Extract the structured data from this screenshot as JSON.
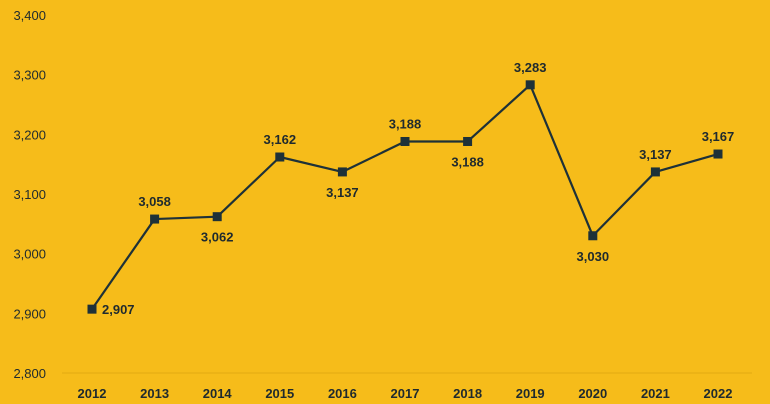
{
  "chart_data": {
    "type": "line",
    "title": "",
    "xlabel": "",
    "ylabel": "",
    "categories": [
      "2012",
      "2013",
      "2014",
      "2015",
      "2016",
      "2017",
      "2018",
      "2019",
      "2020",
      "2021",
      "2022"
    ],
    "values": [
      2907,
      3058,
      3062,
      3162,
      3137,
      3188,
      3188,
      3283,
      3030,
      3137,
      3167
    ],
    "data_labels": [
      "2,907",
      "3,058",
      "3,062",
      "3,162",
      "3,137",
      "3,188",
      "3,188",
      "3,283",
      "3,030",
      "3,137",
      "3,167"
    ],
    "label_positions": [
      "right",
      "above",
      "below",
      "above",
      "below",
      "above",
      "below",
      "above",
      "below",
      "above",
      "above"
    ],
    "yticks": [
      2800,
      2900,
      3000,
      3100,
      3200,
      3300,
      3400
    ],
    "ytick_labels": [
      "2,800",
      "2,900",
      "3,000",
      "3,100",
      "3,200",
      "3,300",
      "3,400"
    ],
    "ylim": [
      2800,
      3400
    ],
    "grid": false,
    "legend": "none",
    "colors": {
      "background": "#F6BC1A",
      "line": "#1E3138",
      "marker": "#1E3138",
      "axis": "#E2AA12",
      "text": "#1F2A2E"
    }
  }
}
